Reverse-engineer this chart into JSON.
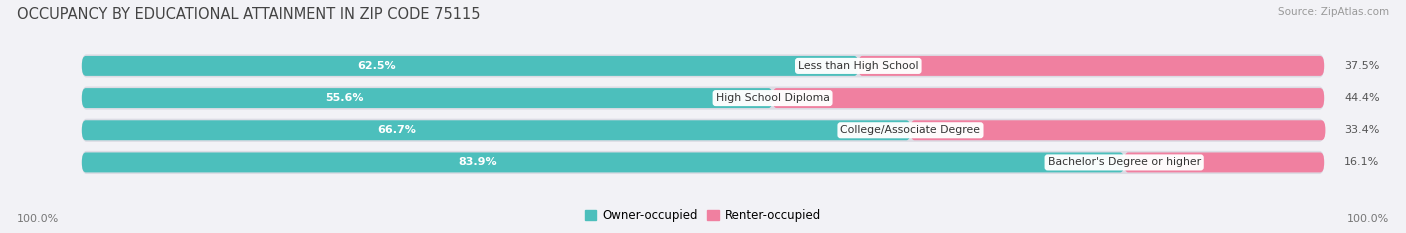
{
  "title": "OCCUPANCY BY EDUCATIONAL ATTAINMENT IN ZIP CODE 75115",
  "source": "Source: ZipAtlas.com",
  "categories": [
    "Less than High School",
    "High School Diploma",
    "College/Associate Degree",
    "Bachelor's Degree or higher"
  ],
  "owner_values": [
    62.5,
    55.6,
    66.7,
    83.9
  ],
  "renter_values": [
    37.5,
    44.4,
    33.4,
    16.1
  ],
  "owner_color": "#4CBFBC",
  "renter_color": "#F080A0",
  "bar_bg_color": "#DCDCE4",
  "owner_label": "Owner-occupied",
  "renter_label": "Renter-occupied",
  "axis_label_left": "100.0%",
  "axis_label_right": "100.0%",
  "title_fontsize": 10.5,
  "source_fontsize": 7.5,
  "label_fontsize": 8,
  "cat_fontsize": 7.8,
  "bar_height": 0.62,
  "background_color": "#F2F2F6"
}
